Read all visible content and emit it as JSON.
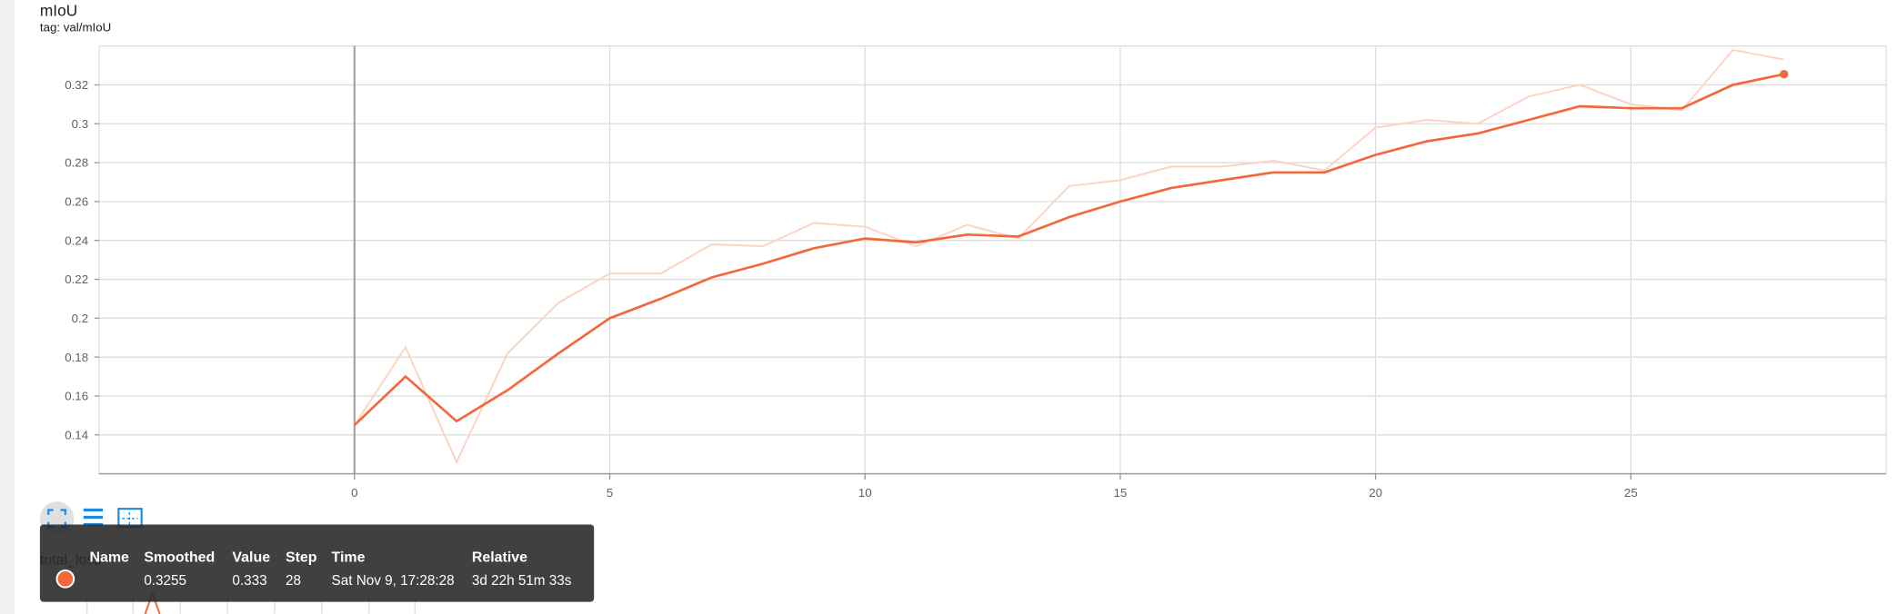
{
  "header": {
    "title": "mIoU",
    "tag": "tag: val/mIoU"
  },
  "chart_data": {
    "type": "line",
    "x": [
      0,
      1,
      2,
      3,
      4,
      5,
      6,
      7,
      8,
      9,
      10,
      11,
      12,
      13,
      14,
      15,
      16,
      17,
      18,
      19,
      20,
      21,
      22,
      23,
      24,
      25,
      26,
      27,
      28
    ],
    "series": [
      {
        "color": "#fdd3c5",
        "values": [
          0.145,
          0.185,
          0.126,
          0.182,
          0.208,
          0.223,
          0.223,
          0.238,
          0.237,
          0.249,
          0.247,
          0.237,
          0.248,
          0.241,
          0.268,
          0.271,
          0.278,
          0.278,
          0.281,
          0.276,
          0.298,
          0.302,
          0.3,
          0.314,
          0.32,
          0.31,
          0.307,
          0.338,
          0.333
        ]
      },
      {
        "color": "#f2683a",
        "values": [
          0.145,
          0.17,
          0.147,
          0.163,
          0.182,
          0.2,
          0.21,
          0.221,
          0.228,
          0.236,
          0.241,
          0.239,
          0.243,
          0.242,
          0.252,
          0.26,
          0.267,
          0.271,
          0.275,
          0.275,
          0.284,
          0.291,
          0.295,
          0.302,
          0.309,
          0.308,
          0.308,
          0.32,
          0.3255
        ]
      }
    ],
    "xlim": [
      -5,
      30
    ],
    "xticks": [
      0,
      5,
      10,
      15,
      20,
      25
    ],
    "ylim": [
      0.12,
      0.34
    ],
    "yticks": [
      0.14,
      0.16,
      0.18,
      0.2,
      0.22,
      0.24,
      0.26,
      0.28,
      0.3,
      0.32
    ],
    "grid": true
  },
  "tooltip": {
    "columns": [
      "Name",
      "Smoothed",
      "Value",
      "Step",
      "Time",
      "Relative"
    ],
    "row_color": "#f2683a",
    "row": [
      "0.3255",
      "0.333",
      "28",
      "Sat Nov 9, 17:28:28",
      "3d 22h 51m 33s"
    ]
  },
  "next_chart": {
    "title": "total_loss"
  }
}
